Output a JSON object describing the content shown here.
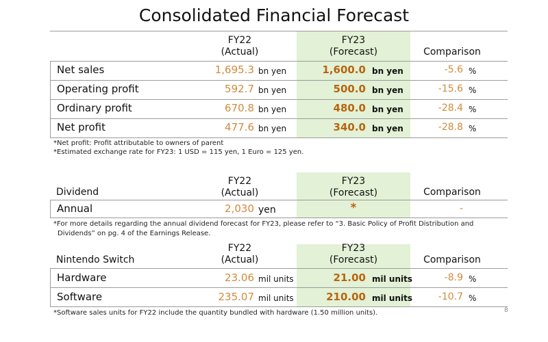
{
  "title": "Consolidated Financial Forecast",
  "colors": {
    "fy22_value": "#d08a3c",
    "fy23_value": "#b8650f",
    "forecast_bg": "#e3f1d6"
  },
  "headers": {
    "fy22_line1": "FY22",
    "fy22_line2": "(Actual)",
    "fy23_line1": "FY23",
    "fy23_line2": "(Forecast)",
    "comparison": "Comparison"
  },
  "financials": {
    "rows": [
      {
        "label": "Net sales",
        "fy22": "1,695.3",
        "fy22_unit": "bn yen",
        "fy23": "1,600.0",
        "fy23_unit": "bn yen",
        "comparison": "-5.6",
        "cmp_unit": "%"
      },
      {
        "label": "Operating profit",
        "fy22": "592.7",
        "fy22_unit": "bn yen",
        "fy23": "500.0",
        "fy23_unit": "bn yen",
        "comparison": "-15.6",
        "cmp_unit": "%"
      },
      {
        "label": "Ordinary profit",
        "fy22": "670.8",
        "fy22_unit": "bn yen",
        "fy23": "480.0",
        "fy23_unit": "bn yen",
        "comparison": "-28.4",
        "cmp_unit": "%"
      },
      {
        "label": "Net profit",
        "fy22": "477.6",
        "fy22_unit": "bn yen",
        "fy23": "340.0",
        "fy23_unit": "bn yen",
        "comparison": "-28.8",
        "cmp_unit": "%"
      }
    ],
    "notes": [
      "*Net profit: Profit attributable to owners of parent",
      "*Estimated exchange rate for FY23: 1 USD = 115 yen, 1 Euro = 125 yen."
    ]
  },
  "dividend": {
    "section_label": "Dividend",
    "row": {
      "label": "Annual",
      "fy22": "2,030",
      "fy22_unit": "yen",
      "fy23": "*",
      "comparison": "-"
    },
    "note_line1": "*For more details regarding the annual dividend forecast for FY23, please refer to “3. Basic Policy of Profit Distribution and",
    "note_line2": "Dividends” on pg. 4 of the Earnings Release."
  },
  "switch": {
    "section_label": "Nintendo Switch",
    "rows": [
      {
        "label": "Hardware",
        "fy22": "23.06",
        "fy22_unit": "mil units",
        "fy23": "21.00",
        "fy23_unit": "mil units",
        "comparison": "-8.9",
        "cmp_unit": "%"
      },
      {
        "label": "Software",
        "fy22": "235.07",
        "fy22_unit": "mil units",
        "fy23": "210.00",
        "fy23_unit": "mil units",
        "comparison": "-10.7",
        "cmp_unit": "%"
      }
    ],
    "note": "*Software sales units for FY22 include the quantity bundled with hardware (1.50 million units)."
  },
  "page_number": "8"
}
